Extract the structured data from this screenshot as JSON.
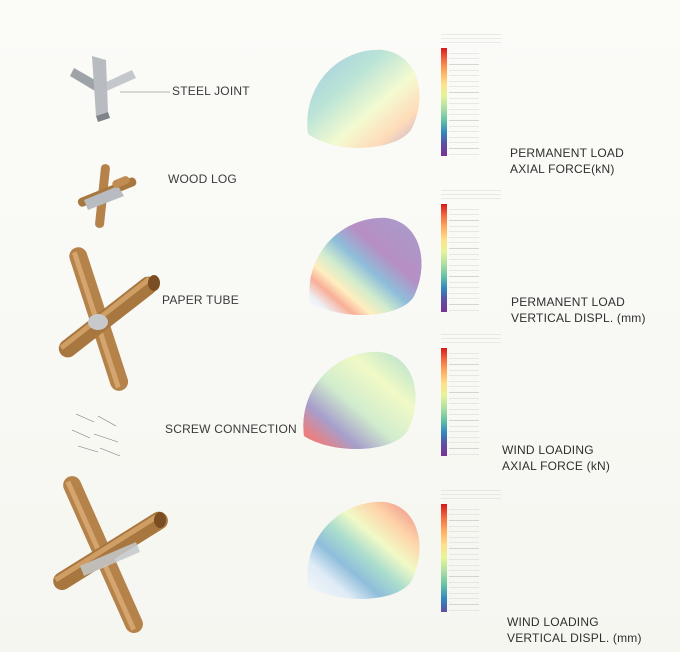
{
  "joints": [
    {
      "label": "STEEL JOINT"
    },
    {
      "label": "WOOD LOG"
    },
    {
      "label": "PAPER TUBE"
    },
    {
      "label": "SCREW CONNECTION"
    },
    {
      "label": ""
    }
  ],
  "panels": [
    {
      "caption_line1": "PERMANENT LOAD",
      "caption_line2": "AXIAL FORCE(kN)",
      "palette": "axial"
    },
    {
      "caption_line1": "PERMANENT LOAD",
      "caption_line2": "VERTICAL DISPL. (mm)",
      "palette": "displ_top"
    },
    {
      "caption_line1": "WIND LOADING",
      "caption_line2": "AXIAL FORCE (kN)",
      "palette": "axial_wind"
    },
    {
      "caption_line1": "WIND LOADING",
      "caption_line2": "VERTICAL DISPL. (mm)",
      "palette": "displ_wind"
    }
  ],
  "colors": {
    "legend_scale": [
      "#d7191c",
      "#f46d43",
      "#fdae61",
      "#fee08b",
      "#e6f598",
      "#abdda4",
      "#66c2a5",
      "#3288bd",
      "#5e4fa2",
      "#7b3294"
    ],
    "tube": "#b5834a",
    "tube_dark": "#8a5a2a",
    "steel": "#a9aeb3"
  }
}
